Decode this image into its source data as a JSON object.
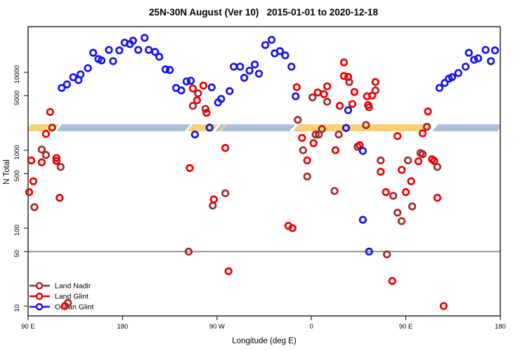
{
  "window": {
    "background": "#FFFFFF"
  },
  "chart_data": {
    "type": "scatter",
    "title": "25N-30N August (Ver 10)   2015-01-01 to 2020-12-18",
    "xlabel": "Longitude (deg E)",
    "ylabel": "N Total",
    "x_axis": {
      "range_deg": [
        90,
        540
      ],
      "note": "axis spans 450 deg eastward starting at 90E, wrapping 180 -> 90W -> 0 -> 90E -> 180",
      "ticks": [
        {
          "pos": 90,
          "label": "90 E"
        },
        {
          "pos": 180,
          "label": "180"
        },
        {
          "pos": 270,
          "label": "90 W"
        },
        {
          "pos": 360,
          "label": "0"
        },
        {
          "pos": 450,
          "label": "90 E"
        },
        {
          "pos": 540,
          "label": "180"
        }
      ]
    },
    "y_axis": {
      "scale": "log",
      "range": [
        7.5,
        38500
      ],
      "ticks": [
        {
          "value": 10,
          "label": "10"
        },
        {
          "value": 50,
          "label": "50"
        },
        {
          "value": 100,
          "label": "100"
        },
        {
          "value": 500,
          "label": "500"
        },
        {
          "value": 1000,
          "label": "1000"
        },
        {
          "value": 5000,
          "label": "5000"
        },
        {
          "value": 10000,
          "label": "10000"
        }
      ]
    },
    "grid": "off",
    "reference_line": {
      "value": 50,
      "color": "#919191"
    },
    "highlight_band": {
      "n_low": 1750,
      "n_high": 2150,
      "colors": {
        "orange": "#FAD077",
        "blue": "#A9BEDB"
      },
      "segments": [
        {
          "from": 119.5,
          "to": 242,
          "color": "blue"
        },
        {
          "from": 271,
          "to": 342,
          "color": "blue"
        },
        {
          "from": 478,
          "to": 540,
          "color": "blue"
        },
        {
          "from": 90,
          "to": 117,
          "color": "orange"
        },
        {
          "from": 244,
          "to": 268.5,
          "color": "orange"
        },
        {
          "from": 274.5,
          "to": 277,
          "color": "orange"
        },
        {
          "from": 345,
          "to": 472.5,
          "color": "orange"
        }
      ]
    },
    "legend": {
      "position": "bottom-left",
      "entries": [
        {
          "label": "Land Nadir",
          "color": "#A52A2A"
        },
        {
          "label": "Land Glint",
          "color": "#EE0000"
        },
        {
          "label": "Ocean Glint",
          "color": "#1414EE"
        }
      ]
    },
    "series": [
      {
        "name": "Land Nadir",
        "color": "#A52A2A",
        "points": [
          [
            113,
            1950
          ],
          [
            103,
            1020
          ],
          [
            107,
            870
          ],
          [
            121,
            610
          ],
          [
            96,
            186
          ],
          [
            128,
            11
          ],
          [
            243,
            50
          ],
          [
            247,
            3710
          ],
          [
            252,
            5370
          ],
          [
            259,
            3390
          ],
          [
            266,
            195
          ],
          [
            278,
            280
          ],
          [
            347,
            2450
          ],
          [
            352,
            1000
          ],
          [
            356,
            460
          ],
          [
            361,
            4760
          ],
          [
            364,
            1590
          ],
          [
            367,
            1590
          ],
          [
            370,
            1870
          ],
          [
            375,
            4190
          ],
          [
            382,
            300
          ],
          [
            386,
            1590
          ],
          [
            396,
            7500
          ],
          [
            404,
            1110
          ],
          [
            412,
            2100
          ],
          [
            415,
            3550
          ],
          [
            421,
            5850
          ],
          [
            426,
            740
          ],
          [
            432,
            46
          ],
          [
            438,
            260
          ],
          [
            442,
            158
          ],
          [
            446,
            123
          ],
          [
            452,
            740
          ],
          [
            456,
            190
          ],
          [
            464,
            920
          ],
          [
            466,
            890
          ],
          [
            470,
            2000
          ],
          [
            480,
            610
          ]
        ]
      },
      {
        "name": "Land Glint",
        "color": "#EE0000",
        "points": [
          [
            111,
            3100
          ],
          [
            107,
            1620
          ],
          [
            93,
            740
          ],
          [
            103,
            700
          ],
          [
            117,
            795
          ],
          [
            117,
            730
          ],
          [
            95,
            400
          ],
          [
            91,
            290
          ],
          [
            120,
            245
          ],
          [
            125,
            10
          ],
          [
            244,
            590
          ],
          [
            247,
            6200
          ],
          [
            251,
            4370
          ],
          [
            257,
            6760
          ],
          [
            260,
            3020
          ],
          [
            267,
            234
          ],
          [
            278,
            1070
          ],
          [
            281,
            28
          ],
          [
            338,
            107
          ],
          [
            342,
            100
          ],
          [
            346,
            6460
          ],
          [
            351,
            1440
          ],
          [
            356,
            740
          ],
          [
            362,
            1230
          ],
          [
            366,
            5500
          ],
          [
            372,
            5250
          ],
          [
            375,
            6600
          ],
          [
            383,
            1000
          ],
          [
            387,
            3710
          ],
          [
            391,
            8950
          ],
          [
            391,
            13400
          ],
          [
            395,
            8700
          ],
          [
            399,
            3920
          ],
          [
            401,
            5600
          ],
          [
            406,
            1160
          ],
          [
            413,
            4930
          ],
          [
            414,
            3800
          ],
          [
            418,
            5030
          ],
          [
            421,
            7500
          ],
          [
            426,
            530
          ],
          [
            431,
            290
          ],
          [
            437,
            21
          ],
          [
            442,
            1520
          ],
          [
            446,
            560
          ],
          [
            450,
            290
          ],
          [
            455,
            400
          ],
          [
            462,
            720
          ],
          [
            466,
            1650
          ],
          [
            471,
            3140
          ],
          [
            475,
            765
          ],
          [
            477,
            730
          ],
          [
            480,
            245
          ],
          [
            486,
            10
          ]
        ]
      },
      {
        "name": "Ocean Glint",
        "color": "#1414EE",
        "points": [
          [
            122,
            6300
          ],
          [
            127,
            7000
          ],
          [
            133,
            8650
          ],
          [
            138,
            7950
          ],
          [
            140,
            9400
          ],
          [
            147,
            11300
          ],
          [
            152,
            17800
          ],
          [
            157,
            14800
          ],
          [
            160,
            14200
          ],
          [
            167,
            19400
          ],
          [
            171,
            13900
          ],
          [
            177,
            19100
          ],
          [
            182,
            24000
          ],
          [
            187,
            23000
          ],
          [
            190,
            25500
          ],
          [
            195,
            19400
          ],
          [
            201,
            27700
          ],
          [
            205,
            19400
          ],
          [
            211,
            18300
          ],
          [
            215,
            15800
          ],
          [
            221,
            10900
          ],
          [
            225,
            10700
          ],
          [
            231,
            6300
          ],
          [
            236,
            5850
          ],
          [
            241,
            7630
          ],
          [
            245,
            7790
          ],
          [
            249,
            1590
          ],
          [
            263,
            1950
          ],
          [
            265,
            6420
          ],
          [
            271,
            4100
          ],
          [
            274,
            4560
          ],
          [
            282,
            5740
          ],
          [
            286,
            11800
          ],
          [
            292,
            11800
          ],
          [
            296,
            8500
          ],
          [
            301,
            10500
          ],
          [
            306,
            12600
          ],
          [
            310,
            9600
          ],
          [
            316,
            22400
          ],
          [
            322,
            26100
          ],
          [
            325,
            17500
          ],
          [
            330,
            18700
          ],
          [
            335,
            16500
          ],
          [
            341,
            11800
          ],
          [
            345,
            4930
          ],
          [
            393,
            1930
          ],
          [
            395,
            3260
          ],
          [
            409,
            980
          ],
          [
            409,
            128
          ],
          [
            415,
            50
          ],
          [
            482,
            6300
          ],
          [
            487,
            7300
          ],
          [
            491,
            8300
          ],
          [
            494,
            8650
          ],
          [
            500,
            9800
          ],
          [
            507,
            11800
          ],
          [
            510,
            17800
          ],
          [
            515,
            14500
          ],
          [
            519,
            15100
          ],
          [
            526,
            19400
          ],
          [
            531,
            13900
          ],
          [
            535,
            19100
          ]
        ]
      }
    ]
  }
}
